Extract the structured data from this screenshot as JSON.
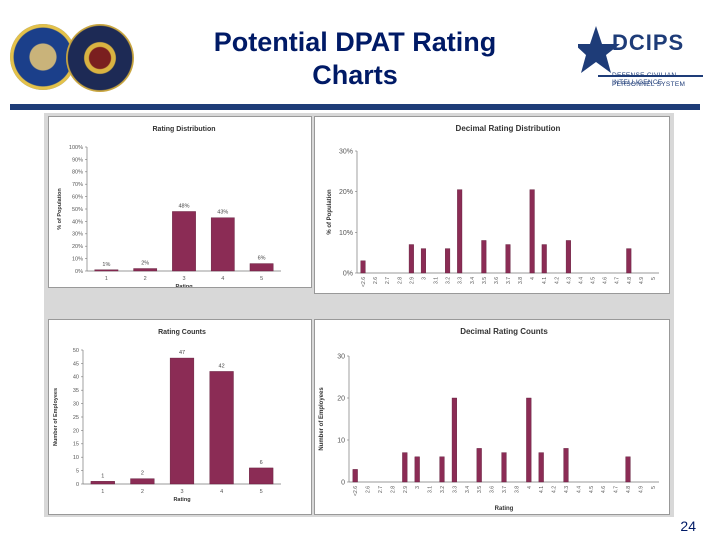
{
  "slide": {
    "title_line1": "Potential DPAT Rating",
    "title_line2": "Charts",
    "logo_text": "DCIPS",
    "logo_sub1": "DEFENSE CIVILIAN INTELLIGENCE",
    "logo_sub2": "PERSONNEL SYSTEM",
    "page_number": "24",
    "colors": {
      "accent": "#1e3c78",
      "bar": "#8b2c55",
      "title": "#001a66"
    }
  },
  "chart_data": [
    {
      "id": "rating-distribution",
      "type": "bar",
      "title": "Rating Distribution",
      "xlabel": "Rating",
      "ylabel": "% of Population",
      "categories": [
        "1",
        "2",
        "3",
        "4",
        "5"
      ],
      "values": [
        1,
        2,
        48,
        43,
        6
      ],
      "data_labels": [
        "1%",
        "2%",
        "48%",
        "43%",
        "6%"
      ],
      "ylim": [
        0,
        100
      ],
      "yticks": [
        0,
        10,
        20,
        30,
        40,
        50,
        60,
        70,
        80,
        90,
        100
      ],
      "ytick_labels": [
        "0%",
        "10%",
        "20%",
        "30%",
        "40%",
        "50%",
        "60%",
        "70%",
        "80%",
        "90%",
        "100%"
      ]
    },
    {
      "id": "decimal-rating-distribution",
      "type": "bar",
      "title": "Decimal Rating Distribution",
      "xlabel": "",
      "ylabel": "% of Population",
      "categories": [
        "<2.6",
        "2.6",
        "2.7",
        "2.8",
        "2.9",
        "3",
        "3.1",
        "3.2",
        "3.3",
        "3.4",
        "3.5",
        "3.6",
        "3.7",
        "3.8",
        "4",
        "4.1",
        "4.2",
        "4.3",
        "4.4",
        "4.5",
        "4.6",
        "4.7",
        "4.8",
        "4.9",
        "5"
      ],
      "values": [
        3,
        0,
        0,
        0,
        7,
        6,
        0,
        6,
        20.5,
        0,
        8,
        0,
        7,
        0,
        20.5,
        7,
        0,
        8,
        0,
        0,
        0,
        0,
        6,
        0,
        0
      ],
      "ylim": [
        0,
        30
      ],
      "yticks": [
        0,
        10,
        20,
        30
      ],
      "ytick_labels": [
        "0%",
        "10%",
        "20%",
        "30%"
      ]
    },
    {
      "id": "rating-counts",
      "type": "bar",
      "title": "Rating Counts",
      "xlabel": "Rating",
      "ylabel": "Number of Employees",
      "categories": [
        "1",
        "2",
        "3",
        "4",
        "5"
      ],
      "values": [
        1,
        2,
        47,
        42,
        6
      ],
      "data_labels": [
        "1",
        "2",
        "47",
        "42",
        "6"
      ],
      "ylim": [
        0,
        50
      ],
      "yticks": [
        0,
        5,
        10,
        15,
        20,
        25,
        30,
        35,
        40,
        45,
        50
      ],
      "ytick_labels": [
        "0",
        "5",
        "10",
        "15",
        "20",
        "25",
        "30",
        "35",
        "40",
        "45",
        "50"
      ]
    },
    {
      "id": "decimal-rating-counts",
      "type": "bar",
      "title": "Decimal Rating Counts",
      "xlabel": "Rating",
      "ylabel": "Number of Employees",
      "categories": [
        "<2.6",
        "2.6",
        "2.7",
        "2.8",
        "2.9",
        "3",
        "3.1",
        "3.2",
        "3.3",
        "3.4",
        "3.5",
        "3.6",
        "3.7",
        "3.8",
        "4",
        "4.1",
        "4.2",
        "4.3",
        "4.4",
        "4.5",
        "4.6",
        "4.7",
        "4.8",
        "4.9",
        "5"
      ],
      "values": [
        3,
        0,
        0,
        0,
        7,
        6,
        0,
        6,
        20,
        0,
        8,
        0,
        7,
        0,
        20,
        7,
        0,
        8,
        0,
        0,
        0,
        0,
        6,
        0,
        0
      ],
      "ylim": [
        0,
        30
      ],
      "yticks": [
        0,
        10,
        20,
        30
      ],
      "ytick_labels": [
        "0",
        "10",
        "20",
        "30"
      ]
    }
  ]
}
